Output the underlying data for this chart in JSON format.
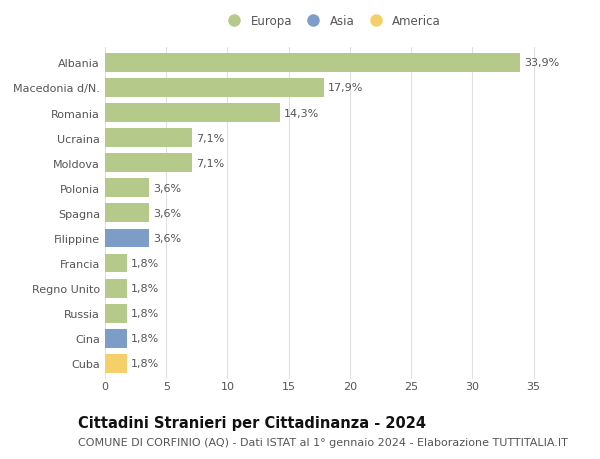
{
  "countries": [
    "Albania",
    "Macedonia d/N.",
    "Romania",
    "Ucraina",
    "Moldova",
    "Polonia",
    "Spagna",
    "Filippine",
    "Francia",
    "Regno Unito",
    "Russia",
    "Cina",
    "Cuba"
  ],
  "values": [
    33.9,
    17.9,
    14.3,
    7.1,
    7.1,
    3.6,
    3.6,
    3.6,
    1.8,
    1.8,
    1.8,
    1.8,
    1.8
  ],
  "labels": [
    "33,9%",
    "17,9%",
    "14,3%",
    "7,1%",
    "7,1%",
    "3,6%",
    "3,6%",
    "3,6%",
    "1,8%",
    "1,8%",
    "1,8%",
    "1,8%",
    "1,8%"
  ],
  "continents": [
    "Europa",
    "Europa",
    "Europa",
    "Europa",
    "Europa",
    "Europa",
    "Europa",
    "Asia",
    "Europa",
    "Europa",
    "Europa",
    "Asia",
    "America"
  ],
  "colors": {
    "Europa": "#b5c98a",
    "Asia": "#7b9dc7",
    "America": "#f5d06a"
  },
  "title": "Cittadini Stranieri per Cittadinanza - 2024",
  "subtitle": "COMUNE DI CORFINIO (AQ) - Dati ISTAT al 1° gennaio 2024 - Elaborazione TUTTITALIA.IT",
  "xlim": [
    0,
    37
  ],
  "xticks": [
    0,
    5,
    10,
    15,
    20,
    25,
    30,
    35
  ],
  "background_color": "#ffffff",
  "grid_color": "#e0e0e0",
  "bar_height": 0.75,
  "label_fontsize": 8,
  "title_fontsize": 10.5,
  "subtitle_fontsize": 8,
  "tick_fontsize": 8,
  "legend_fontsize": 8.5,
  "text_color": "#555555",
  "title_color": "#111111"
}
